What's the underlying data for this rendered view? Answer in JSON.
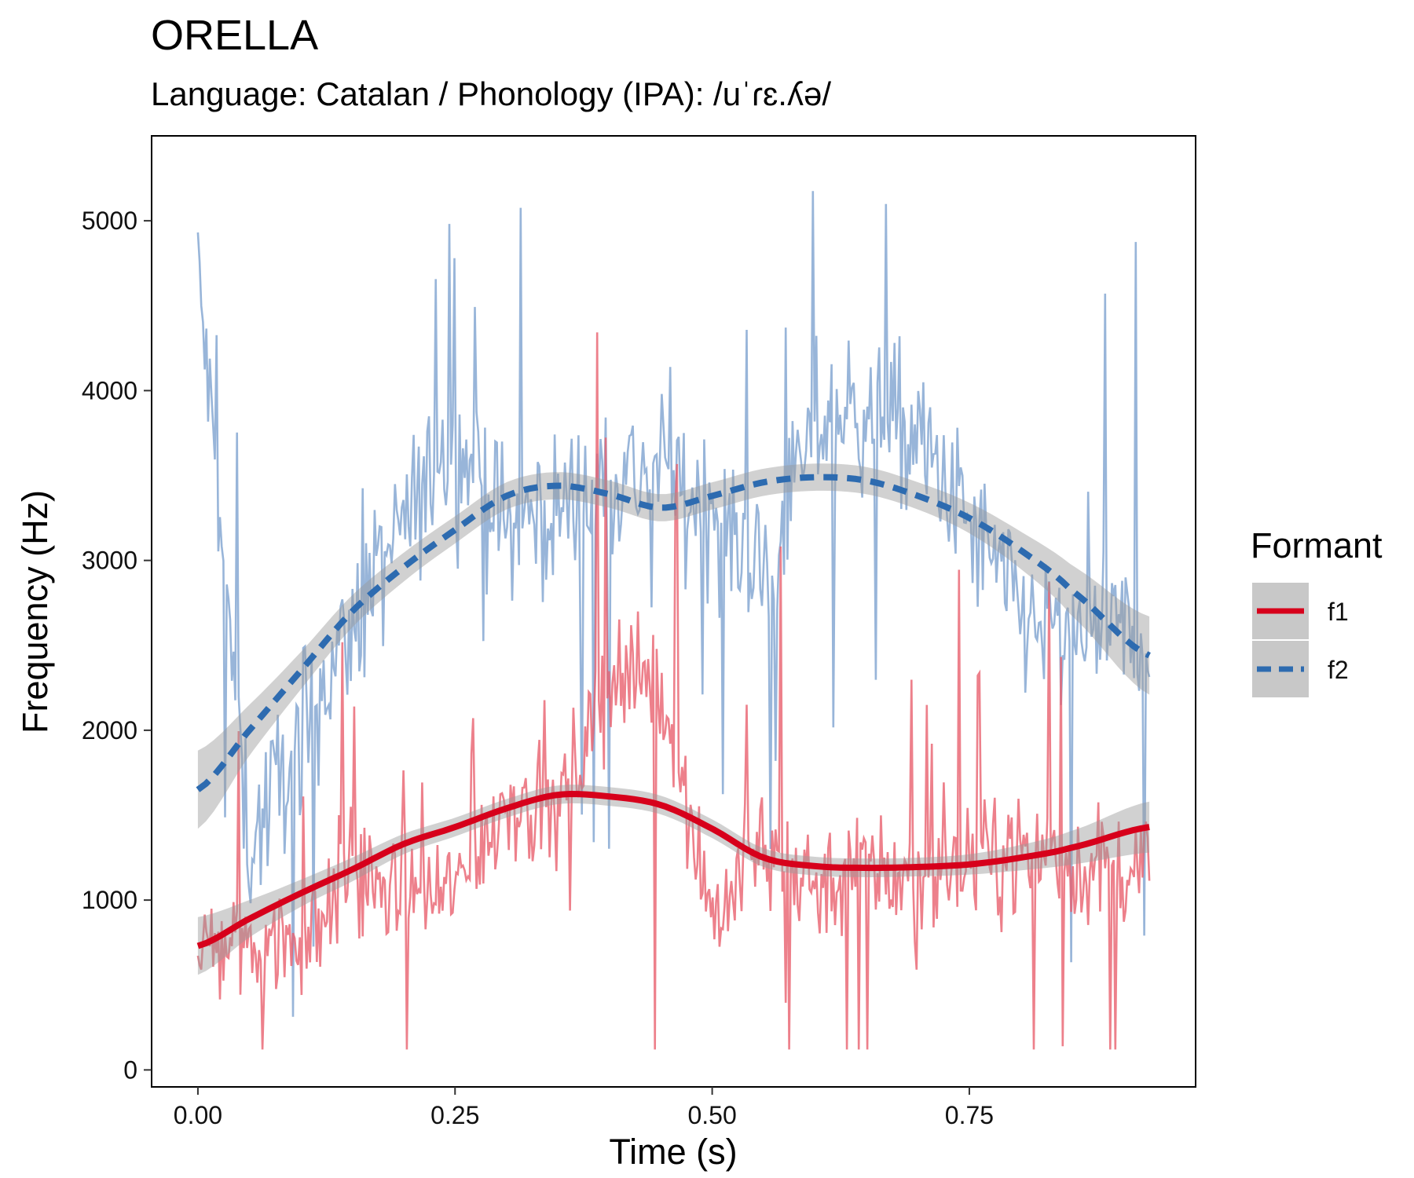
{
  "title": "ORELLA",
  "subtitle": "Language: Catalan / Phonology (IPA): /uˈɾɛ.ʎə/",
  "colors": {
    "f1_line": "#d7001b",
    "f1_raw": "#e8606e",
    "f2_line": "#2d6bb0",
    "f2_raw": "#7ea3cf",
    "ribbon": "#999999",
    "background": "#ffffff"
  },
  "chart_data": {
    "type": "line",
    "title": "ORELLA",
    "subtitle": "Language: Catalan / Phonology (IPA): /uˈɾɛ.ʎə/",
    "xlabel": "Time (s)",
    "ylabel": "Frequency (Hz)",
    "xlim": [
      -0.045,
      0.97
    ],
    "ylim": [
      -100,
      5500
    ],
    "xticks": [
      0.0,
      0.25,
      0.5,
      0.75
    ],
    "xtick_labels": [
      "0.00",
      "0.25",
      "0.50",
      "0.75"
    ],
    "yticks": [
      0,
      1000,
      2000,
      3000,
      4000,
      5000
    ],
    "ytick_labels": [
      "0",
      "1000",
      "2000",
      "3000",
      "4000",
      "5000"
    ],
    "grid": false,
    "legend": {
      "title": "Formant",
      "position": "right",
      "entries": [
        "f1",
        "f2"
      ]
    },
    "series": [
      {
        "name": "f1",
        "style": "solid",
        "raw_x_range": [
          0.0,
          0.925
        ],
        "raw_summary": [
          {
            "x": 0.0,
            "y": 700
          },
          {
            "x": 0.05,
            "y": 800
          },
          {
            "x": 0.1,
            "y": 750
          },
          {
            "x": 0.15,
            "y": 1200
          },
          {
            "x": 0.2,
            "y": 1000
          },
          {
            "x": 0.25,
            "y": 1050
          },
          {
            "x": 0.3,
            "y": 1600
          },
          {
            "x": 0.35,
            "y": 1500
          },
          {
            "x": 0.4,
            "y": 2300
          },
          {
            "x": 0.45,
            "y": 2300
          },
          {
            "x": 0.5,
            "y": 900
          },
          {
            "x": 0.55,
            "y": 1300
          },
          {
            "x": 0.6,
            "y": 1100
          },
          {
            "x": 0.65,
            "y": 1200
          },
          {
            "x": 0.7,
            "y": 1100
          },
          {
            "x": 0.75,
            "y": 1200
          },
          {
            "x": 0.8,
            "y": 1300
          },
          {
            "x": 0.85,
            "y": 1200
          },
          {
            "x": 0.925,
            "y": 1200
          }
        ],
        "smooth": [
          {
            "x": 0.0,
            "y": 730
          },
          {
            "x": 0.05,
            "y": 890
          },
          {
            "x": 0.1,
            "y": 1040
          },
          {
            "x": 0.15,
            "y": 1180
          },
          {
            "x": 0.2,
            "y": 1330
          },
          {
            "x": 0.25,
            "y": 1430
          },
          {
            "x": 0.3,
            "y": 1540
          },
          {
            "x": 0.35,
            "y": 1620
          },
          {
            "x": 0.4,
            "y": 1610
          },
          {
            "x": 0.45,
            "y": 1560
          },
          {
            "x": 0.5,
            "y": 1420
          },
          {
            "x": 0.55,
            "y": 1250
          },
          {
            "x": 0.6,
            "y": 1200
          },
          {
            "x": 0.65,
            "y": 1190
          },
          {
            "x": 0.7,
            "y": 1195
          },
          {
            "x": 0.75,
            "y": 1210
          },
          {
            "x": 0.8,
            "y": 1250
          },
          {
            "x": 0.85,
            "y": 1310
          },
          {
            "x": 0.925,
            "y": 1430
          }
        ],
        "ci_halfwidth": [
          170,
          110,
          80,
          70,
          60,
          55,
          55,
          55,
          55,
          55,
          55,
          55,
          55,
          55,
          55,
          60,
          75,
          100,
          150
        ]
      },
      {
        "name": "f2",
        "style": "dashed",
        "raw_x_range": [
          0.0,
          0.925
        ],
        "raw_summary": [
          {
            "x": 0.0,
            "y": 4700
          },
          {
            "x": 0.05,
            "y": 1300
          },
          {
            "x": 0.1,
            "y": 2000
          },
          {
            "x": 0.15,
            "y": 2600
          },
          {
            "x": 0.2,
            "y": 3200
          },
          {
            "x": 0.25,
            "y": 3700
          },
          {
            "x": 0.3,
            "y": 3200
          },
          {
            "x": 0.35,
            "y": 3300
          },
          {
            "x": 0.4,
            "y": 3500
          },
          {
            "x": 0.45,
            "y": 3500
          },
          {
            "x": 0.5,
            "y": 3300
          },
          {
            "x": 0.55,
            "y": 2900
          },
          {
            "x": 0.6,
            "y": 3800
          },
          {
            "x": 0.65,
            "y": 3900
          },
          {
            "x": 0.7,
            "y": 3700
          },
          {
            "x": 0.75,
            "y": 3200
          },
          {
            "x": 0.8,
            "y": 2700
          },
          {
            "x": 0.85,
            "y": 2500
          },
          {
            "x": 0.925,
            "y": 2600
          }
        ],
        "smooth": [
          {
            "x": 0.0,
            "y": 1650
          },
          {
            "x": 0.05,
            "y": 2000
          },
          {
            "x": 0.1,
            "y": 2350
          },
          {
            "x": 0.15,
            "y": 2700
          },
          {
            "x": 0.2,
            "y": 2960
          },
          {
            "x": 0.25,
            "y": 3180
          },
          {
            "x": 0.3,
            "y": 3380
          },
          {
            "x": 0.35,
            "y": 3440
          },
          {
            "x": 0.4,
            "y": 3390
          },
          {
            "x": 0.45,
            "y": 3310
          },
          {
            "x": 0.5,
            "y": 3380
          },
          {
            "x": 0.55,
            "y": 3460
          },
          {
            "x": 0.6,
            "y": 3490
          },
          {
            "x": 0.65,
            "y": 3470
          },
          {
            "x": 0.7,
            "y": 3380
          },
          {
            "x": 0.75,
            "y": 3250
          },
          {
            "x": 0.8,
            "y": 3060
          },
          {
            "x": 0.85,
            "y": 2820
          },
          {
            "x": 0.925,
            "y": 2440
          }
        ],
        "ci_halfwidth": [
          230,
          150,
          110,
          95,
          85,
          80,
          80,
          80,
          80,
          80,
          80,
          80,
          80,
          80,
          80,
          90,
          110,
          150,
          230
        ]
      }
    ]
  }
}
